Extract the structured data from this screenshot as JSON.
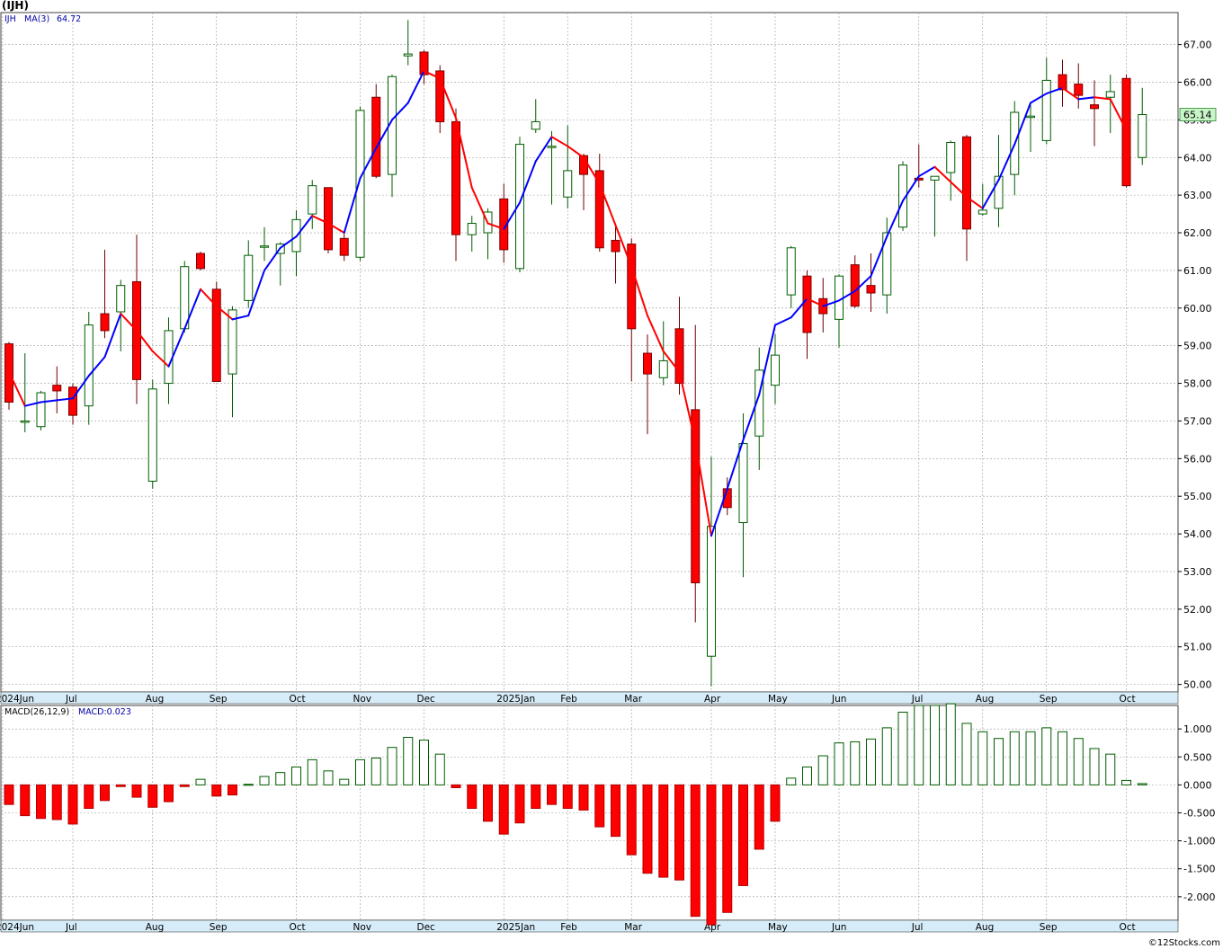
{
  "title": "(IJH)",
  "credit": "©12Stocks.com",
  "colors": {
    "up": "#005c00",
    "down": "#ff0000",
    "ma_up": "#0000ff",
    "ma_down": "#ff0000",
    "grid": "#9a9a9a",
    "axis_band": "#d6ecf8",
    "price_tag": "#c8f5c8",
    "panel_border": "#404040"
  },
  "chart_data": [
    {
      "type": "candlestick",
      "symbol": "IJH",
      "legend": {
        "symbol": "IJH",
        "ma_label": "MA(3)",
        "ma_value": "64.72"
      },
      "last_price_label": "65.14",
      "ylim": [
        49.8,
        67.85
      ],
      "yticks": [
        "50.00",
        "51.00",
        "52.00",
        "53.00",
        "54.00",
        "55.00",
        "56.00",
        "57.00",
        "58.00",
        "59.00",
        "60.00",
        "61.00",
        "62.00",
        "63.00",
        "64.00",
        "65.00",
        "66.00",
        "67.00"
      ],
      "x_labels": [
        {
          "label": "2024Jun",
          "index": -0.4
        },
        {
          "label": "Jul",
          "index": 4
        },
        {
          "label": "Aug",
          "index": 9
        },
        {
          "label": "Sep",
          "index": 13
        },
        {
          "label": "Oct",
          "index": 18
        },
        {
          "label": "Nov",
          "index": 22
        },
        {
          "label": "Dec",
          "index": 26
        },
        {
          "label": "2025Jan",
          "index": 31
        },
        {
          "label": "Feb",
          "index": 35
        },
        {
          "label": "Mar",
          "index": 39
        },
        {
          "label": "Apr",
          "index": 44
        },
        {
          "label": "May",
          "index": 48
        },
        {
          "label": "Jun",
          "index": 52
        },
        {
          "label": "Jul",
          "index": 57
        },
        {
          "label": "Aug",
          "index": 61
        },
        {
          "label": "Sep",
          "index": 65
        },
        {
          "label": "Oct",
          "index": 70
        }
      ],
      "candles": [
        {
          "o": 59.05,
          "h": 59.1,
          "l": 57.3,
          "c": 57.5
        },
        {
          "o": 57.0,
          "h": 58.8,
          "l": 56.7,
          "c": 57.0
        },
        {
          "o": 56.85,
          "h": 57.8,
          "l": 56.75,
          "c": 57.75
        },
        {
          "o": 57.95,
          "h": 58.45,
          "l": 57.2,
          "c": 57.8
        },
        {
          "o": 57.9,
          "h": 58.0,
          "l": 56.9,
          "c": 57.15
        },
        {
          "o": 57.4,
          "h": 59.9,
          "l": 56.9,
          "c": 59.55
        },
        {
          "o": 59.85,
          "h": 61.55,
          "l": 59.2,
          "c": 59.4
        },
        {
          "o": 59.9,
          "h": 60.75,
          "l": 58.85,
          "c": 60.6
        },
        {
          "o": 60.7,
          "h": 61.95,
          "l": 57.45,
          "c": 58.1
        },
        {
          "o": 55.4,
          "h": 58.1,
          "l": 55.2,
          "c": 57.85
        },
        {
          "o": 58.0,
          "h": 59.75,
          "l": 57.45,
          "c": 59.4
        },
        {
          "o": 59.45,
          "h": 61.25,
          "l": 59.35,
          "c": 61.1
        },
        {
          "o": 61.45,
          "h": 61.5,
          "l": 61.0,
          "c": 61.05
        },
        {
          "o": 60.5,
          "h": 60.7,
          "l": 58.05,
          "c": 58.05
        },
        {
          "o": 58.25,
          "h": 60.05,
          "l": 57.1,
          "c": 59.95
        },
        {
          "o": 60.2,
          "h": 61.8,
          "l": 60.0,
          "c": 61.4
        },
        {
          "o": 61.65,
          "h": 62.15,
          "l": 61.25,
          "c": 61.65
        },
        {
          "o": 61.45,
          "h": 61.75,
          "l": 60.6,
          "c": 61.7
        },
        {
          "o": 61.5,
          "h": 62.6,
          "l": 60.85,
          "c": 62.35
        },
        {
          "o": 62.5,
          "h": 63.4,
          "l": 62.1,
          "c": 63.25
        },
        {
          "o": 63.2,
          "h": 63.2,
          "l": 61.45,
          "c": 61.55
        },
        {
          "o": 61.85,
          "h": 62.0,
          "l": 61.25,
          "c": 61.4
        },
        {
          "o": 61.35,
          "h": 65.35,
          "l": 61.25,
          "c": 65.25
        },
        {
          "o": 65.6,
          "h": 65.95,
          "l": 63.45,
          "c": 63.5
        },
        {
          "o": 63.55,
          "h": 66.2,
          "l": 62.95,
          "c": 66.15
        },
        {
          "o": 66.7,
          "h": 67.65,
          "l": 66.45,
          "c": 66.75
        },
        {
          "o": 66.8,
          "h": 66.85,
          "l": 65.95,
          "c": 66.2
        },
        {
          "o": 66.3,
          "h": 66.45,
          "l": 64.65,
          "c": 64.95
        },
        {
          "o": 64.95,
          "h": 65.3,
          "l": 61.25,
          "c": 61.95
        },
        {
          "o": 61.95,
          "h": 62.45,
          "l": 61.5,
          "c": 62.25
        },
        {
          "o": 62.0,
          "h": 62.65,
          "l": 61.3,
          "c": 62.55
        },
        {
          "o": 62.9,
          "h": 63.3,
          "l": 61.2,
          "c": 61.55
        },
        {
          "o": 61.05,
          "h": 64.55,
          "l": 60.95,
          "c": 64.35
        },
        {
          "o": 64.75,
          "h": 65.55,
          "l": 64.65,
          "c": 64.95
        },
        {
          "o": 64.3,
          "h": 64.7,
          "l": 62.75,
          "c": 64.3
        },
        {
          "o": 62.95,
          "h": 64.85,
          "l": 62.65,
          "c": 63.65
        },
        {
          "o": 64.05,
          "h": 64.1,
          "l": 62.6,
          "c": 63.55
        },
        {
          "o": 63.65,
          "h": 64.1,
          "l": 61.5,
          "c": 61.6
        },
        {
          "o": 61.8,
          "h": 62.25,
          "l": 60.65,
          "c": 61.5
        },
        {
          "o": 61.7,
          "h": 61.85,
          "l": 58.05,
          "c": 59.45
        },
        {
          "o": 58.8,
          "h": 59.3,
          "l": 56.65,
          "c": 58.25
        },
        {
          "o": 58.15,
          "h": 59.65,
          "l": 57.95,
          "c": 58.6
        },
        {
          "o": 59.45,
          "h": 60.3,
          "l": 57.7,
          "c": 58.0
        },
        {
          "o": 57.3,
          "h": 59.55,
          "l": 51.65,
          "c": 52.7
        },
        {
          "o": 50.75,
          "h": 56.05,
          "l": 49.95,
          "c": 54.2
        },
        {
          "o": 55.2,
          "h": 55.5,
          "l": 54.5,
          "c": 54.7
        },
        {
          "o": 54.3,
          "h": 57.2,
          "l": 52.85,
          "c": 56.4
        },
        {
          "o": 56.6,
          "h": 58.95,
          "l": 55.7,
          "c": 58.35
        },
        {
          "o": 57.95,
          "h": 59.3,
          "l": 57.45,
          "c": 58.75
        },
        {
          "o": 60.35,
          "h": 61.65,
          "l": 60.0,
          "c": 61.6
        },
        {
          "o": 60.85,
          "h": 61.0,
          "l": 58.65,
          "c": 59.35
        },
        {
          "o": 60.25,
          "h": 60.8,
          "l": 59.35,
          "c": 59.85
        },
        {
          "o": 59.7,
          "h": 60.9,
          "l": 58.95,
          "c": 60.85
        },
        {
          "o": 61.15,
          "h": 61.4,
          "l": 60.0,
          "c": 60.05
        },
        {
          "o": 60.6,
          "h": 61.45,
          "l": 59.9,
          "c": 60.4
        },
        {
          "o": 60.35,
          "h": 62.4,
          "l": 59.85,
          "c": 62.0
        },
        {
          "o": 62.15,
          "h": 63.9,
          "l": 62.05,
          "c": 63.8
        },
        {
          "o": 63.45,
          "h": 64.35,
          "l": 63.2,
          "c": 63.4
        },
        {
          "o": 63.4,
          "h": 63.5,
          "l": 61.9,
          "c": 63.5
        },
        {
          "o": 63.6,
          "h": 64.45,
          "l": 62.85,
          "c": 64.4
        },
        {
          "o": 64.55,
          "h": 64.6,
          "l": 61.25,
          "c": 62.1
        },
        {
          "o": 62.5,
          "h": 63.3,
          "l": 62.45,
          "c": 62.6
        },
        {
          "o": 62.65,
          "h": 64.6,
          "l": 62.15,
          "c": 63.5
        },
        {
          "o": 63.55,
          "h": 65.5,
          "l": 63.0,
          "c": 65.2
        },
        {
          "o": 65.1,
          "h": 65.4,
          "l": 64.15,
          "c": 65.1
        },
        {
          "o": 64.45,
          "h": 66.65,
          "l": 64.35,
          "c": 66.05
        },
        {
          "o": 66.2,
          "h": 66.6,
          "l": 65.35,
          "c": 65.8
        },
        {
          "o": 65.95,
          "h": 66.5,
          "l": 65.3,
          "c": 65.65
        },
        {
          "o": 65.4,
          "h": 66.05,
          "l": 64.3,
          "c": 65.3
        },
        {
          "o": 65.6,
          "h": 66.2,
          "l": 64.65,
          "c": 65.75
        },
        {
          "o": 66.1,
          "h": 66.2,
          "l": 63.2,
          "c": 63.25
        },
        {
          "o": 64.0,
          "h": 65.85,
          "l": 63.8,
          "c": 65.14
        }
      ],
      "ma3": [
        58.3,
        57.4,
        57.5,
        57.55,
        57.6,
        58.2,
        58.7,
        59.85,
        59.4,
        58.85,
        58.45,
        59.45,
        60.5,
        60.05,
        59.7,
        59.8,
        61.0,
        61.6,
        61.9,
        62.45,
        62.25,
        62.0,
        63.45,
        64.25,
        65.0,
        65.45,
        66.3,
        66.1,
        65.05,
        63.2,
        62.25,
        62.1,
        62.8,
        63.9,
        64.55,
        64.3,
        64.0,
        63.3,
        62.2,
        61.1,
        59.8,
        58.85,
        58.3,
        56.45,
        53.95,
        55.2,
        56.5,
        57.7,
        59.55,
        59.75,
        60.25,
        60.05,
        60.2,
        60.45,
        60.85,
        61.9,
        62.85,
        63.5,
        63.75,
        63.35,
        62.95,
        62.65,
        63.4,
        64.35,
        65.45,
        65.7,
        65.85,
        65.55,
        65.6,
        65.55,
        64.72
      ]
    },
    {
      "type": "bar",
      "legend": {
        "label": "MACD(26,12,9)",
        "value_label": "MACD:0.023"
      },
      "ylim": [
        -2.42,
        1.42
      ],
      "yticks": [
        "1.000",
        "0.500",
        "0.000",
        "-0.500",
        "-1.000",
        "-1.500",
        "-2.000"
      ],
      "values": [
        -0.35,
        -0.55,
        -0.6,
        -0.62,
        -0.7,
        -0.42,
        -0.28,
        -0.03,
        -0.22,
        -0.4,
        -0.3,
        -0.03,
        0.1,
        -0.2,
        -0.18,
        0.01,
        0.15,
        0.22,
        0.32,
        0.45,
        0.25,
        0.1,
        0.45,
        0.48,
        0.67,
        0.85,
        0.8,
        0.55,
        -0.05,
        -0.42,
        -0.65,
        -0.88,
        -0.68,
        -0.42,
        -0.35,
        -0.42,
        -0.45,
        -0.75,
        -0.92,
        -1.25,
        -1.58,
        -1.65,
        -1.7,
        -2.35,
        -2.5,
        -2.28,
        -1.8,
        -1.15,
        -0.65,
        0.12,
        0.32,
        0.52,
        0.75,
        0.77,
        0.82,
        1.02,
        1.3,
        1.42,
        1.42,
        1.45,
        1.1,
        0.95,
        0.83,
        0.95,
        0.95,
        1.02,
        0.95,
        0.83,
        0.65,
        0.55,
        0.08,
        0.023
      ]
    }
  ]
}
